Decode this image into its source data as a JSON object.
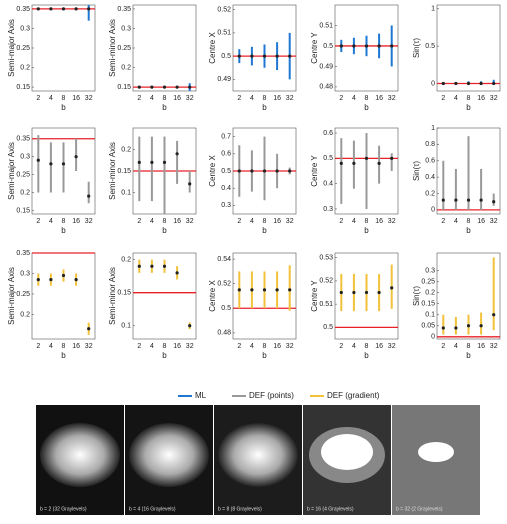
{
  "chart_data": [
    {
      "type": "box",
      "ylabel": "Semi-major Axis",
      "xlabel": "b",
      "categories": [
        2,
        4,
        8,
        16,
        32
      ],
      "color": "#1f77d4",
      "ylim": [
        0.14,
        0.36
      ],
      "yticks": [
        0.15,
        0.2,
        0.25,
        0.3,
        0.35
      ],
      "reference_line": 0.35,
      "reference_color": "#e8202a",
      "values": [
        0.35,
        0.35,
        0.35,
        0.35,
        0.35
      ],
      "low": [
        0.35,
        0.35,
        0.35,
        0.35,
        0.32
      ],
      "high": [
        0.35,
        0.35,
        0.35,
        0.35,
        0.36
      ]
    },
    {
      "type": "box",
      "ylabel": "Semi-minor Axis",
      "xlabel": "b",
      "categories": [
        2,
        4,
        8,
        16,
        32
      ],
      "color": "#1f77d4",
      "ylim": [
        0.14,
        0.36
      ],
      "yticks": [
        0.15,
        0.2,
        0.25,
        0.3,
        0.35
      ],
      "reference_line": 0.15,
      "reference_color": "#e8202a",
      "values": [
        0.15,
        0.15,
        0.15,
        0.15,
        0.15
      ],
      "low": [
        0.15,
        0.15,
        0.15,
        0.15,
        0.14
      ],
      "high": [
        0.15,
        0.15,
        0.15,
        0.15,
        0.16
      ]
    },
    {
      "type": "box",
      "ylabel": "Centre X",
      "xlabel": "b",
      "categories": [
        2,
        4,
        8,
        16,
        32
      ],
      "color": "#1f77d4",
      "ylim": [
        0.485,
        0.522
      ],
      "yticks": [
        0.49,
        0.5,
        0.51,
        0.52
      ],
      "reference_line": 0.5,
      "reference_color": "#e8202a",
      "values": [
        0.5,
        0.5,
        0.5,
        0.5,
        0.5
      ],
      "low": [
        0.497,
        0.496,
        0.495,
        0.494,
        0.49
      ],
      "high": [
        0.503,
        0.504,
        0.505,
        0.506,
        0.51
      ]
    },
    {
      "type": "box",
      "ylabel": "Centre Y",
      "xlabel": "b",
      "categories": [
        2,
        4,
        8,
        16,
        32
      ],
      "color": "#1f77d4",
      "ylim": [
        0.478,
        0.52
      ],
      "yticks": [
        0.48,
        0.49,
        0.5,
        0.51
      ],
      "reference_line": 0.5,
      "reference_color": "#e8202a",
      "values": [
        0.5,
        0.5,
        0.5,
        0.5,
        0.5
      ],
      "low": [
        0.497,
        0.496,
        0.495,
        0.494,
        0.49
      ],
      "high": [
        0.503,
        0.504,
        0.505,
        0.506,
        0.51
      ]
    },
    {
      "type": "box",
      "ylabel": "Sin(τ)",
      "xlabel": "b",
      "categories": [
        2,
        4,
        8,
        16,
        32
      ],
      "color": "#1f77d4",
      "ylim": [
        -0.1,
        1.05
      ],
      "yticks": [
        0,
        0.5,
        1
      ],
      "reference_line": 0,
      "reference_color": "#e8202a",
      "values": [
        0,
        0,
        0,
        0,
        0
      ],
      "low": [
        0,
        0,
        0,
        0,
        0
      ],
      "high": [
        0.02,
        0.02,
        0.03,
        0.03,
        0.05
      ]
    },
    {
      "type": "box",
      "ylabel": "Semi-major Axis",
      "xlabel": "b",
      "categories": [
        2,
        4,
        8,
        16,
        32
      ],
      "color": "#999999",
      "ylim": [
        0.14,
        0.38
      ],
      "yticks": [
        0.15,
        0.2,
        0.25,
        0.3,
        0.35
      ],
      "reference_line": 0.35,
      "reference_color": "#e8202a",
      "values": [
        0.29,
        0.28,
        0.28,
        0.3,
        0.19
      ],
      "low": [
        0.2,
        0.2,
        0.2,
        0.26,
        0.17
      ],
      "high": [
        0.36,
        0.34,
        0.34,
        0.35,
        0.23
      ]
    },
    {
      "type": "box",
      "ylabel": "Semi-minor Axis",
      "xlabel": "b",
      "categories": [
        2,
        4,
        8,
        16,
        32
      ],
      "color": "#999999",
      "ylim": [
        0.05,
        0.25
      ],
      "yticks": [
        0.1,
        0.15,
        0.2
      ],
      "reference_line": 0.15,
      "reference_color": "#e8202a",
      "values": [
        0.17,
        0.17,
        0.17,
        0.19,
        0.12
      ],
      "low": [
        0.08,
        0.08,
        0.05,
        0.12,
        0.1
      ],
      "high": [
        0.23,
        0.23,
        0.23,
        0.22,
        0.15
      ]
    },
    {
      "type": "box",
      "ylabel": "Centre X",
      "xlabel": "b",
      "categories": [
        2,
        4,
        8,
        16,
        32
      ],
      "color": "#999999",
      "ylim": [
        0.25,
        0.75
      ],
      "yticks": [
        0.3,
        0.4,
        0.5,
        0.6,
        0.7
      ],
      "reference_line": 0.5,
      "reference_color": "#e8202a",
      "values": [
        0.5,
        0.5,
        0.5,
        0.5,
        0.5
      ],
      "low": [
        0.35,
        0.38,
        0.33,
        0.4,
        0.48
      ],
      "high": [
        0.65,
        0.62,
        0.7,
        0.6,
        0.52
      ]
    },
    {
      "type": "box",
      "ylabel": "Centre Y",
      "xlabel": "b",
      "categories": [
        2,
        4,
        8,
        16,
        32
      ],
      "color": "#999999",
      "ylim": [
        0.28,
        0.62
      ],
      "yticks": [
        0.3,
        0.4,
        0.5,
        0.6
      ],
      "reference_line": 0.5,
      "reference_color": "#e8202a",
      "values": [
        0.48,
        0.48,
        0.5,
        0.48,
        0.5
      ],
      "low": [
        0.32,
        0.38,
        0.3,
        0.4,
        0.45
      ],
      "high": [
        0.58,
        0.57,
        0.6,
        0.55,
        0.52
      ]
    },
    {
      "type": "box",
      "ylabel": "Sin(τ)",
      "xlabel": "b",
      "categories": [
        2,
        4,
        8,
        16,
        32
      ],
      "color": "#999999",
      "ylim": [
        -0.05,
        1
      ],
      "yticks": [
        0,
        0.2,
        0.4,
        0.6,
        0.8,
        1
      ],
      "reference_line": 0,
      "reference_color": "#e8202a",
      "values": [
        0.12,
        0.12,
        0.12,
        0.12,
        0.1
      ],
      "low": [
        0,
        0,
        0,
        0,
        0.05
      ],
      "high": [
        0.6,
        0.5,
        0.9,
        0.5,
        0.2
      ]
    },
    {
      "type": "box",
      "ylabel": "Semi-major Axis",
      "xlabel": "b",
      "categories": [
        2,
        4,
        8,
        16,
        32
      ],
      "color": "#f2c23a",
      "ylim": [
        0.14,
        0.35
      ],
      "yticks": [
        0.2,
        0.25,
        0.3,
        0.35
      ],
      "reference_line": 0.35,
      "reference_color": "#e8202a",
      "values": [
        0.285,
        0.285,
        0.295,
        0.285,
        0.165
      ],
      "low": [
        0.27,
        0.27,
        0.28,
        0.27,
        0.15
      ],
      "high": [
        0.3,
        0.3,
        0.31,
        0.3,
        0.18
      ]
    },
    {
      "type": "box",
      "ylabel": "Semi-minor Axis",
      "xlabel": "b",
      "categories": [
        2,
        4,
        8,
        16,
        32
      ],
      "color": "#f2c23a",
      "ylim": [
        0.08,
        0.21
      ],
      "yticks": [
        0.1,
        0.15,
        0.2
      ],
      "reference_line": 0.15,
      "reference_color": "#e8202a",
      "values": [
        0.19,
        0.19,
        0.19,
        0.18,
        0.1
      ],
      "low": [
        0.18,
        0.18,
        0.18,
        0.17,
        0.095
      ],
      "high": [
        0.2,
        0.2,
        0.2,
        0.19,
        0.105
      ]
    },
    {
      "type": "box",
      "ylabel": "Centre X",
      "xlabel": "b",
      "categories": [
        2,
        4,
        8,
        16,
        32
      ],
      "color": "#f2c23a",
      "ylim": [
        0.475,
        0.545
      ],
      "yticks": [
        0.48,
        0.5,
        0.52,
        0.54
      ],
      "reference_line": 0.5,
      "reference_color": "#e8202a",
      "values": [
        0.515,
        0.515,
        0.515,
        0.515,
        0.515
      ],
      "low": [
        0.5,
        0.5,
        0.5,
        0.5,
        0.498
      ],
      "high": [
        0.53,
        0.53,
        0.53,
        0.53,
        0.535
      ]
    },
    {
      "type": "box",
      "ylabel": "Centre Y",
      "xlabel": "b",
      "categories": [
        2,
        4,
        8,
        16,
        32
      ],
      "color": "#f2c23a",
      "ylim": [
        0.495,
        0.532
      ],
      "yticks": [
        0.5,
        0.51,
        0.52,
        0.53
      ],
      "reference_line": 0.5,
      "reference_color": "#e8202a",
      "values": [
        0.515,
        0.515,
        0.515,
        0.515,
        0.517
      ],
      "low": [
        0.507,
        0.507,
        0.507,
        0.507,
        0.508
      ],
      "high": [
        0.523,
        0.523,
        0.523,
        0.523,
        0.527
      ]
    },
    {
      "type": "box",
      "ylabel": "Sin(τ)",
      "xlabel": "b",
      "categories": [
        2,
        4,
        8,
        16,
        32
      ],
      "color": "#f2c23a",
      "ylim": [
        -0.01,
        0.38
      ],
      "yticks": [
        0,
        0.05,
        0.1,
        0.15,
        0.2,
        0.25,
        0.3
      ],
      "reference_line": 0,
      "reference_color": "#e8202a",
      "values": [
        0.04,
        0.04,
        0.05,
        0.05,
        0.1
      ],
      "low": [
        0.01,
        0.01,
        0.01,
        0.01,
        0.03
      ],
      "high": [
        0.1,
        0.09,
        0.1,
        0.11,
        0.36
      ]
    }
  ],
  "legend": [
    {
      "label": "ML",
      "color": "#1f77d4"
    },
    {
      "label": "DEF (points)",
      "color": "#999999"
    },
    {
      "label": "DEF (gradient)",
      "color": "#f2c23a"
    }
  ],
  "images": [
    {
      "caption": "b = 2  (32 Graylevels)"
    },
    {
      "caption": "b = 4  (16 Graylevels)"
    },
    {
      "caption": "b = 8  (8 Graylevels)"
    },
    {
      "caption": "b = 16  (4 Graylevels)"
    },
    {
      "caption": "b = 32  (2 Graylevels)"
    }
  ]
}
